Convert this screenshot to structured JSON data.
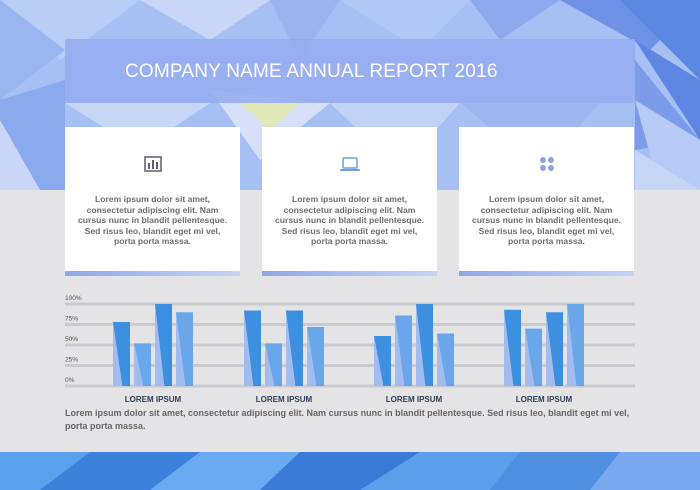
{
  "title": "COMPANY NAME ANNUAL REPORT 2016",
  "cards": [
    {
      "icon": "bar-chart-icon",
      "text": "Lorem ipsum dolor sit amet, consectetur adipiscing elit. Nam cursus nunc in blandit pellentesque. Sed risus leo, blandit eget mi vel, porta porta massa."
    },
    {
      "icon": "laptop-icon",
      "text": "Lorem ipsum dolor sit amet, consectetur adipiscing elit. Nam cursus nunc in blandit pellentesque. Sed risus leo, blandit eget mi vel, porta porta massa."
    },
    {
      "icon": "grid-dots-icon",
      "text": "Lorem ipsum dolor sit amet, consectetur adipiscing elit. Nam cursus nunc in blandit pellentesque. Sed risus leo, blandit eget mi vel, porta porta massa."
    }
  ],
  "chart_data": {
    "type": "bar",
    "categories": [
      "LOREM IPSUM",
      "LOREM IPSUM",
      "LOREM IPSUM",
      "LOREM IPSUM"
    ],
    "y_ticks": [
      "100%",
      "75%",
      "50%",
      "25%",
      "0%"
    ],
    "ylim": [
      0,
      100
    ],
    "series": [
      {
        "values": [
          78,
          92,
          61,
          93
        ]
      },
      {
        "values": [
          52,
          52,
          86,
          70
        ]
      },
      {
        "values": [
          100,
          92,
          100,
          90
        ]
      },
      {
        "values": [
          90,
          72,
          64,
          100
        ]
      }
    ],
    "colors": [
      "#3d8fe0",
      "#a3bcf0"
    ]
  },
  "footer_text": "Lorem ipsum dolor sit amet, consectetur adipiscing elit. Nam cursus nunc in blandit pellentesque. Sed risus leo, blandit eget mi vel, porta porta massa."
}
